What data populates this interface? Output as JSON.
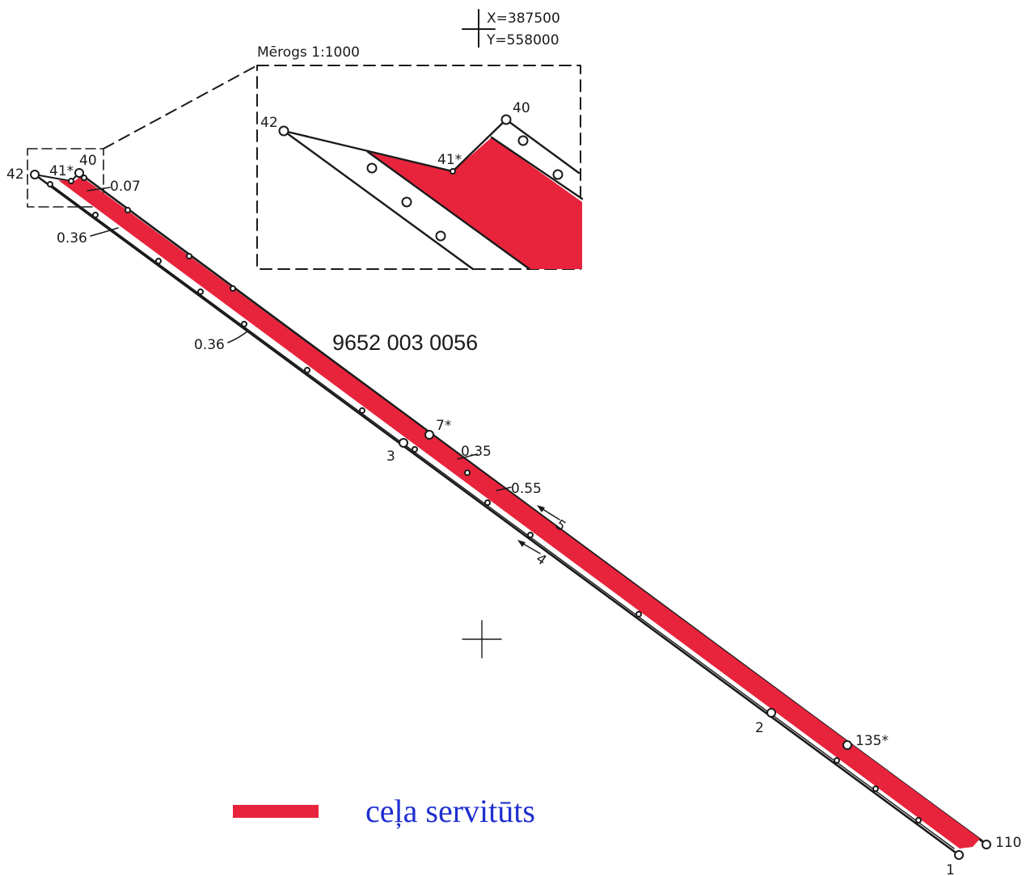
{
  "coordinates": {
    "x": "X=387500",
    "y": "Y=558000"
  },
  "scale_label": "Mērogs 1:1000",
  "parcel_id": "9652 003 0056",
  "points": {
    "p42": "42",
    "p41": "41*",
    "p40": "40",
    "p7": "7*",
    "p3": "3",
    "p2": "2",
    "p135": "135*",
    "p110": "110",
    "p1": "1"
  },
  "inset_points": {
    "p42": "42",
    "p41": "41*",
    "p40": "40"
  },
  "widths": {
    "w007": "0.07",
    "w036a": "0.36",
    "w036b": "0.36",
    "w035": "0.35",
    "w055": "0.55"
  },
  "arrows": {
    "a5": "5",
    "a4": "4"
  },
  "legend": {
    "label": "ceļa servitūts",
    "color": "#e8243c"
  }
}
